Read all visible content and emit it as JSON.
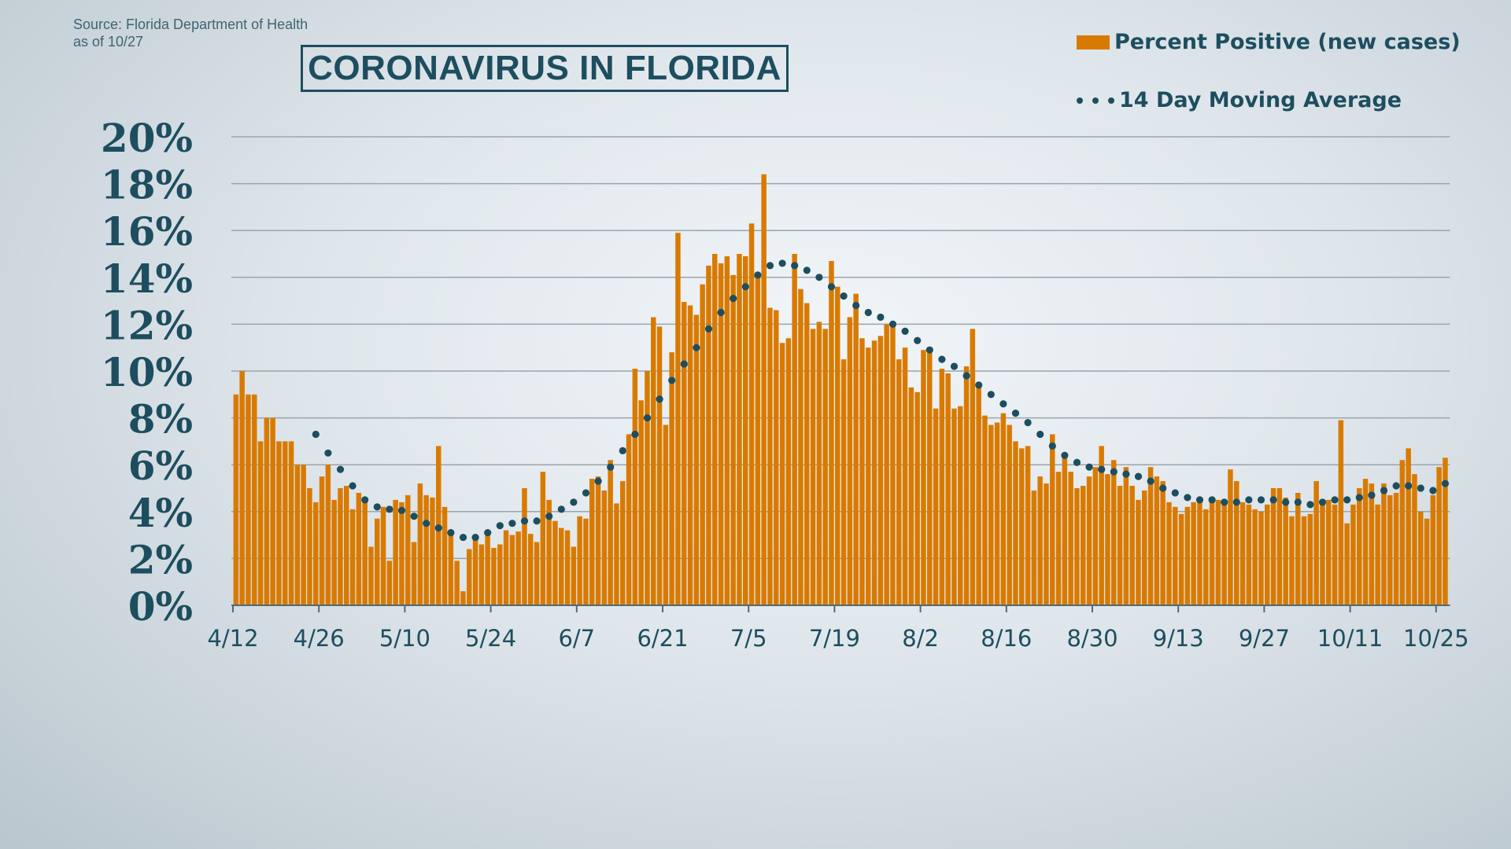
{
  "source": {
    "line1": "Source: Florida Department of Health",
    "line2": "as of 10/27"
  },
  "title": "CORONAVIRUS IN FLORIDA",
  "colors": {
    "bar": "#d97a00",
    "moving_average": "#1d4e5f",
    "text": "#1d4e5f",
    "grid": "#9aa5ab"
  },
  "legend": [
    {
      "label": "Percent Positive (new cases)",
      "icon": "orange-square"
    },
    {
      "label": "14 Day Moving Average",
      "icon": "dotted-line"
    }
  ],
  "chart_data": {
    "type": "bar",
    "title": "CORONAVIRUS IN FLORIDA",
    "xlabel": "",
    "ylabel": "",
    "ylim": [
      0,
      20
    ],
    "y_ticks": [
      "0%",
      "2%",
      "4%",
      "6%",
      "8%",
      "10%",
      "12%",
      "14%",
      "16%",
      "18%",
      "20%"
    ],
    "x_ticks": [
      "4/12",
      "4/26",
      "5/10",
      "5/24",
      "6/7",
      "6/21",
      "7/5",
      "7/19",
      "8/2",
      "8/16",
      "8/30",
      "9/13",
      "9/27",
      "10/11",
      "10/25"
    ],
    "x_tick_step_days": 14,
    "grid": true,
    "legend_position": "top-right",
    "series": [
      {
        "name": "Percent Positive (new cases)",
        "type": "bar",
        "values": [
          9.0,
          10.0,
          9.0,
          9.0,
          7.0,
          8.0,
          8.0,
          7.0,
          7.0,
          7.0,
          6.0,
          6.0,
          5.0,
          4.4,
          5.5,
          6.0,
          4.5,
          5.0,
          5.1,
          4.1,
          4.8,
          4.6,
          2.5,
          3.7,
          4.2,
          1.9,
          4.5,
          4.4,
          4.7,
          2.7,
          5.2,
          4.7,
          4.6,
          6.8,
          4.2,
          3.2,
          1.9,
          0.6,
          2.4,
          2.8,
          2.6,
          3.2,
          2.45,
          2.6,
          3.2,
          3.0,
          3.15,
          5.0,
          3.05,
          2.7,
          5.7,
          4.5,
          3.6,
          3.3,
          3.2,
          2.5,
          3.8,
          3.7,
          5.4,
          5.5,
          4.9,
          6.2,
          4.35,
          5.3,
          7.3,
          10.1,
          8.75,
          10.0,
          12.3,
          11.9,
          7.7,
          10.8,
          15.9,
          12.95,
          12.8,
          12.4,
          13.7,
          14.5,
          15.0,
          14.6,
          14.9,
          14.1,
          15.0,
          14.9,
          16.3,
          14.1,
          18.4,
          12.7,
          12.6,
          11.2,
          11.4,
          15.0,
          13.5,
          12.9,
          11.8,
          12.1,
          11.8,
          14.7,
          13.6,
          10.5,
          12.3,
          13.3,
          11.4,
          11.0,
          11.3,
          11.5,
          12.0,
          11.9,
          10.5,
          11.0,
          9.3,
          9.1,
          10.9,
          10.9,
          8.4,
          10.1,
          9.9,
          8.4,
          8.5,
          10.2,
          11.8,
          9.5,
          8.1,
          7.7,
          7.8,
          8.2,
          7.7,
          7.0,
          6.7,
          6.8,
          4.9,
          5.5,
          5.2,
          7.3,
          5.7,
          6.3,
          5.7,
          5.0,
          5.1,
          5.5,
          5.9,
          6.8,
          5.6,
          6.2,
          5.1,
          5.9,
          5.1,
          4.5,
          4.9,
          5.9,
          5.5,
          5.3,
          4.4,
          4.2,
          3.9,
          4.2,
          4.4,
          4.4,
          4.1,
          4.5,
          4.5,
          4.3,
          5.8,
          5.3,
          4.4,
          4.3,
          4.1,
          4.0,
          4.3,
          5.0,
          5.0,
          4.6,
          3.8,
          4.8,
          3.8,
          3.9,
          5.3,
          4.3,
          4.5,
          4.3,
          7.9,
          3.5,
          4.3,
          5.0,
          5.4,
          5.2,
          4.3,
          5.2,
          4.7,
          4.8,
          6.2,
          6.7,
          5.6,
          4.0,
          3.7,
          4.7,
          5.9,
          6.3
        ]
      },
      {
        "name": "14 Day Moving Average",
        "type": "dotted-line",
        "step_days": 2,
        "values": [
          7.3,
          6.5,
          5.8,
          5.1,
          4.5,
          4.2,
          4.1,
          4.05,
          3.8,
          3.5,
          3.3,
          3.1,
          2.9,
          2.9,
          3.1,
          3.4,
          3.5,
          3.6,
          3.6,
          3.8,
          4.1,
          4.4,
          4.8,
          5.3,
          5.9,
          6.6,
          7.3,
          8.0,
          8.8,
          9.6,
          10.3,
          11.0,
          11.8,
          12.5,
          13.1,
          13.6,
          14.1,
          14.5,
          14.6,
          14.5,
          14.3,
          14.0,
          13.6,
          13.2,
          12.8,
          12.5,
          12.3,
          12.0,
          11.7,
          11.3,
          10.9,
          10.5,
          10.2,
          9.8,
          9.4,
          9.0,
          8.6,
          8.2,
          7.8,
          7.3,
          6.8,
          6.4,
          6.1,
          5.9,
          5.8,
          5.7,
          5.6,
          5.5,
          5.3,
          5.0,
          4.8,
          4.6,
          4.5,
          4.5,
          4.4,
          4.4,
          4.5,
          4.5,
          4.5,
          4.4,
          4.4,
          4.3,
          4.4,
          4.5,
          4.5,
          4.6,
          4.7,
          4.9,
          5.1,
          5.1,
          5.0,
          4.9,
          5.2
        ]
      }
    ]
  }
}
